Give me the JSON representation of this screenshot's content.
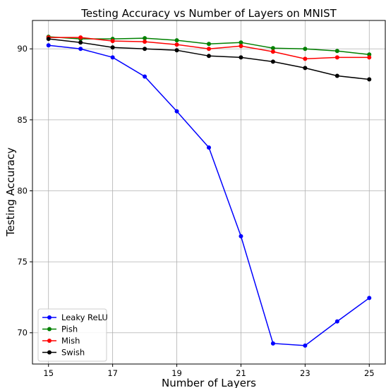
{
  "chart_data": {
    "type": "line",
    "title": "Testing Accuracy vs Number of Layers on MNIST",
    "xlabel": "Number of Layers",
    "ylabel": "Testing Accuracy",
    "x": [
      15,
      16,
      17,
      18,
      19,
      20,
      21,
      22,
      23,
      24,
      25
    ],
    "xlim": [
      14.5,
      25.5
    ],
    "ylim": [
      67.8,
      92.0
    ],
    "xticks": [
      15,
      17,
      19,
      21,
      23,
      25
    ],
    "yticks": [
      70,
      75,
      80,
      85,
      90
    ],
    "grid": true,
    "legend_position": "lower-left",
    "series": [
      {
        "name": "Leaky ReLU",
        "color": "#0000ff",
        "values": [
          90.25,
          90.0,
          89.4,
          88.05,
          85.6,
          83.05,
          76.8,
          69.25,
          69.1,
          70.8,
          72.45
        ]
      },
      {
        "name": "Pish",
        "color": "#008000",
        "values": [
          90.85,
          90.7,
          90.7,
          90.75,
          90.6,
          90.35,
          90.45,
          90.05,
          90.0,
          89.85,
          89.6
        ]
      },
      {
        "name": "Mish",
        "color": "#ff0000",
        "values": [
          90.8,
          90.8,
          90.55,
          90.5,
          90.3,
          90.0,
          90.2,
          89.8,
          89.3,
          89.4,
          89.4
        ]
      },
      {
        "name": "Swish",
        "color": "#000000",
        "values": [
          90.7,
          90.45,
          90.1,
          90.0,
          89.9,
          89.5,
          89.4,
          89.1,
          88.65,
          88.1,
          87.85
        ]
      }
    ]
  }
}
